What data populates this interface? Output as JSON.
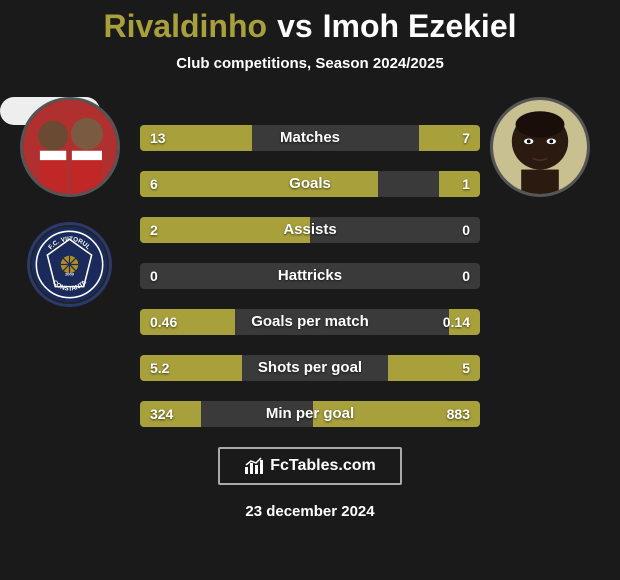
{
  "header": {
    "player1": "Rivaldinho",
    "vs": "vs",
    "player2": "Imoh Ezekiel",
    "subtitle": "Club competitions, Season 2024/2025",
    "p1_color": "#a8a03a",
    "p2_color": "#ffffff"
  },
  "bars": {
    "bg_color": "#3a3a3a",
    "fill_color": "#a8a03a",
    "rows": [
      {
        "label": "Matches",
        "left_val": "13",
        "right_val": "7",
        "left_pct": 33,
        "right_pct": 18
      },
      {
        "label": "Goals",
        "left_val": "6",
        "right_val": "1",
        "left_pct": 70,
        "right_pct": 12
      },
      {
        "label": "Assists",
        "left_val": "2",
        "right_val": "0",
        "left_pct": 50,
        "right_pct": 0
      },
      {
        "label": "Hattricks",
        "left_val": "0",
        "right_val": "0",
        "left_pct": 0,
        "right_pct": 0
      },
      {
        "label": "Goals per match",
        "left_val": "0.46",
        "right_val": "0.14",
        "left_pct": 28,
        "right_pct": 9
      },
      {
        "label": "Shots per goal",
        "left_val": "5.2",
        "right_val": "5",
        "left_pct": 30,
        "right_pct": 27
      },
      {
        "label": "Min per goal",
        "left_val": "324",
        "right_val": "883",
        "left_pct": 18,
        "right_pct": 49
      }
    ]
  },
  "footer": {
    "brand": "FcTables.com",
    "date": "23 december 2024"
  },
  "avatars": {
    "left_bg": "#a02020",
    "right_bg": "#c0c0a0",
    "club_left_text": "VIITORUL",
    "club_left_city": "CONSTANTA",
    "club_left_year": "2009"
  }
}
